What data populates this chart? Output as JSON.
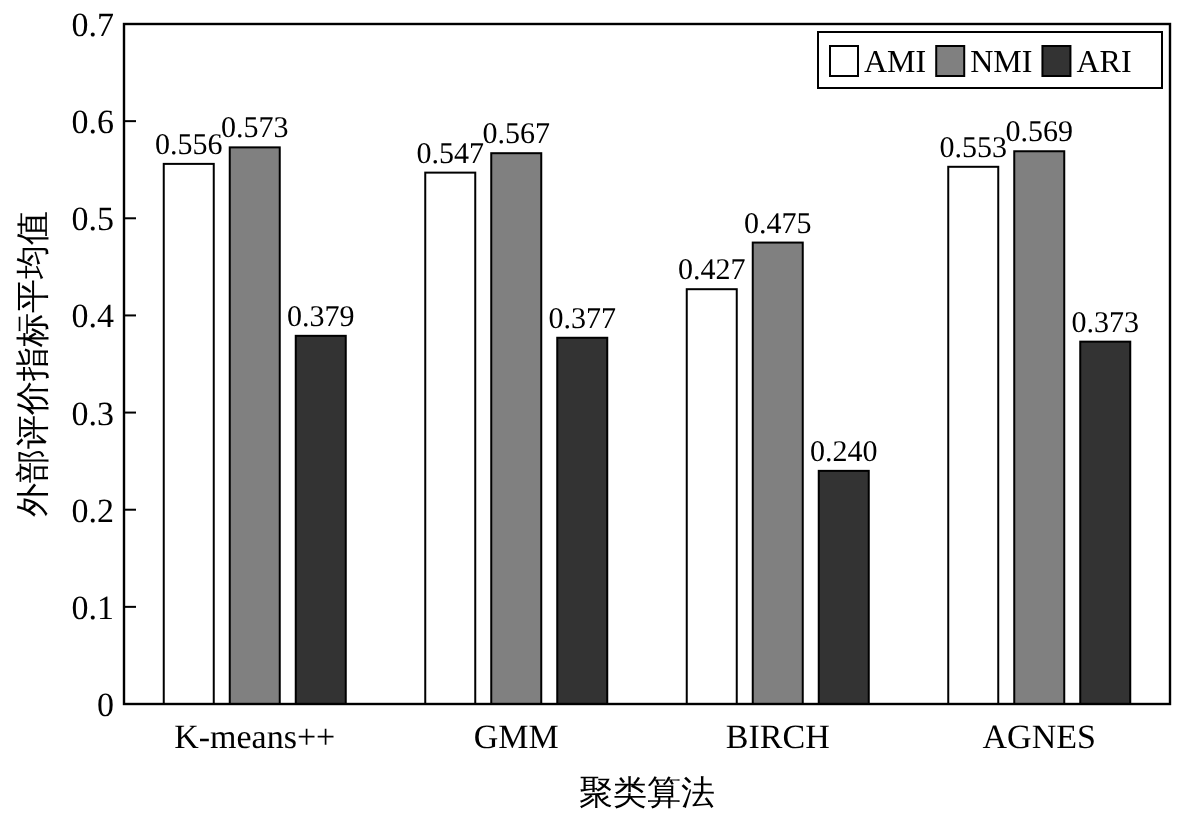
{
  "chart_data": {
    "type": "bar",
    "xlabel": "聚类算法",
    "ylabel": "外部评价指标平均值",
    "categories": [
      "K-means++",
      "GMM",
      "BIRCH",
      "AGNES"
    ],
    "series": [
      {
        "name": "AMI",
        "color": "#ffffff",
        "values": [
          0.556,
          0.547,
          0.427,
          0.553
        ],
        "value_labels": [
          "0.556",
          "0.547",
          "0.427",
          "0.553"
        ]
      },
      {
        "name": "NMI",
        "color": "#808080",
        "values": [
          0.573,
          0.567,
          0.475,
          0.569
        ],
        "value_labels": [
          "0.573",
          "0.567",
          "0.475",
          "0.569"
        ]
      },
      {
        "name": "ARI",
        "color": "#333333",
        "values": [
          0.379,
          0.377,
          0.24,
          0.373
        ],
        "value_labels": [
          "0.379",
          "0.377",
          "0.240",
          "0.373"
        ]
      }
    ],
    "ylim": [
      0,
      0.7
    ],
    "yticks": [
      0,
      0.1,
      0.2,
      0.3,
      0.4,
      0.5,
      0.6,
      0.7
    ],
    "legend": "top right"
  }
}
